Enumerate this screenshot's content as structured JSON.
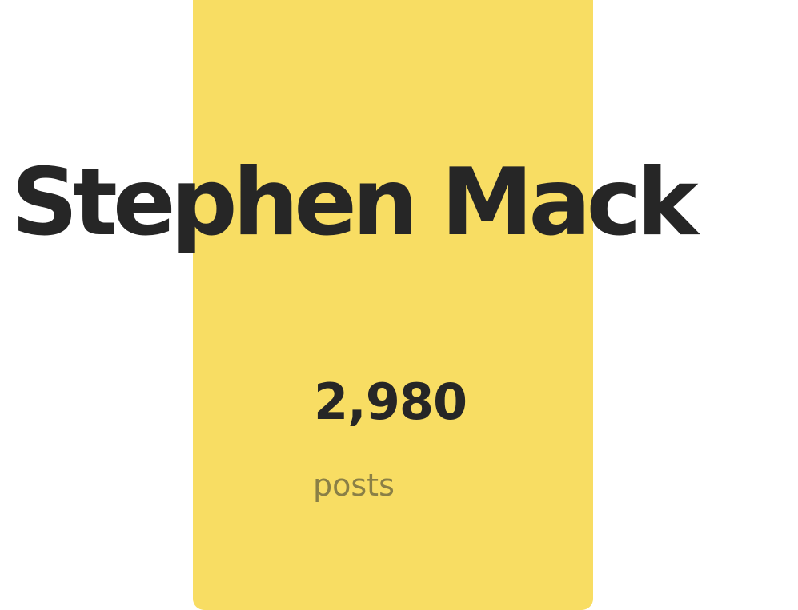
{
  "profile": {
    "name": "Stephen Mack",
    "post_count": "2,980",
    "post_label": "posts"
  },
  "colors": {
    "accent": "#f8dd63",
    "text": "#262626",
    "muted_text": "#8a7f46",
    "background": "#ffffff"
  }
}
